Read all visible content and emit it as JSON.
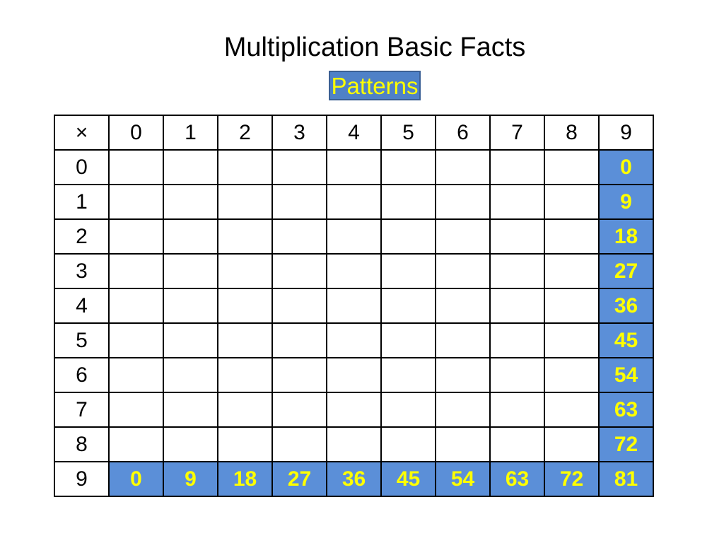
{
  "title": "Multiplication Basic Facts",
  "subtitle": "Patterns",
  "colors": {
    "highlight_bg": "#5b8fd8",
    "highlight_text": "#ffff00",
    "grid_line": "#000000"
  },
  "table": {
    "corner": "×",
    "col_headers": [
      "0",
      "1",
      "2",
      "3",
      "4",
      "5",
      "6",
      "7",
      "8",
      "9"
    ],
    "row_headers": [
      "0",
      "1",
      "2",
      "3",
      "4",
      "5",
      "6",
      "7",
      "8",
      "9"
    ],
    "rows": [
      [
        "",
        "",
        "",
        "",
        "",
        "",
        "",
        "",
        "",
        "0"
      ],
      [
        "",
        "",
        "",
        "",
        "",
        "",
        "",
        "",
        "",
        "9"
      ],
      [
        "",
        "",
        "",
        "",
        "",
        "",
        "",
        "",
        "",
        "18"
      ],
      [
        "",
        "",
        "",
        "",
        "",
        "",
        "",
        "",
        "",
        "27"
      ],
      [
        "",
        "",
        "",
        "",
        "",
        "",
        "",
        "",
        "",
        "36"
      ],
      [
        "",
        "",
        "",
        "",
        "",
        "",
        "",
        "",
        "",
        "45"
      ],
      [
        "",
        "",
        "",
        "",
        "",
        "",
        "",
        "",
        "",
        "54"
      ],
      [
        "",
        "",
        "",
        "",
        "",
        "",
        "",
        "",
        "",
        "63"
      ],
      [
        "",
        "",
        "",
        "",
        "",
        "",
        "",
        "",
        "",
        "72"
      ],
      [
        "0",
        "9",
        "18",
        "27",
        "36",
        "45",
        "54",
        "63",
        "72",
        "81"
      ]
    ]
  }
}
